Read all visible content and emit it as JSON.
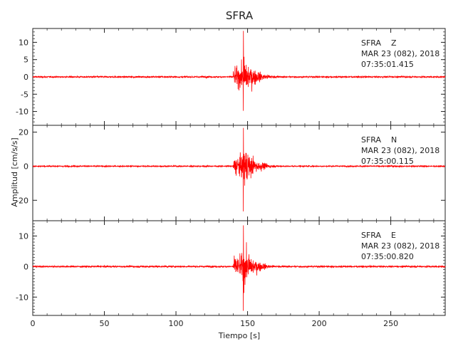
{
  "chart_data": {
    "type": "line",
    "title": "SFRA",
    "xlabel": "Tiempo [s]",
    "ylabel": "Amplitud [cm/s/s]",
    "xlim": [
      0,
      288
    ],
    "xticks": [
      "0",
      "50",
      "100",
      "150",
      "200",
      "250"
    ],
    "xtick_values": [
      0,
      50,
      100,
      150,
      200,
      250
    ],
    "trace_color": "#ff0000",
    "event_onset_s": 140,
    "peak_time_s": 147,
    "panels": [
      {
        "component": "Z",
        "station_label": "SFRA    Z",
        "date_label": "MAR 23 (082), 2018",
        "time_label": "07:35:01.415",
        "ylim": [
          -14,
          14
        ],
        "yticks": [
          "10",
          "5",
          "0",
          "-5",
          "-10"
        ],
        "ytick_values": [
          10,
          5,
          0,
          -5,
          -10
        ],
        "peak_pos": 13.3,
        "peak_neg": -9.8,
        "noise": 0.25
      },
      {
        "component": "N",
        "station_label": "SFRA    N",
        "date_label": "MAR 23 (082), 2018",
        "time_label": "07:35:00.115",
        "ylim": [
          -32,
          24
        ],
        "yticks": [
          "20",
          "0",
          "-20"
        ],
        "ytick_values": [
          20,
          0,
          -20
        ],
        "peak_pos": 22.5,
        "peak_neg": -26.5,
        "noise": 0.4
      },
      {
        "component": "E",
        "station_label": "SFRA    E",
        "date_label": "MAR 23 (082), 2018",
        "time_label": "07:35:00.820",
        "ylim": [
          -16,
          15
        ],
        "yticks": [
          "10",
          "0",
          "-10"
        ],
        "ytick_values": [
          10,
          0,
          -10
        ],
        "peak_pos": 13.5,
        "peak_neg": -14.5,
        "noise": 0.3
      }
    ]
  }
}
